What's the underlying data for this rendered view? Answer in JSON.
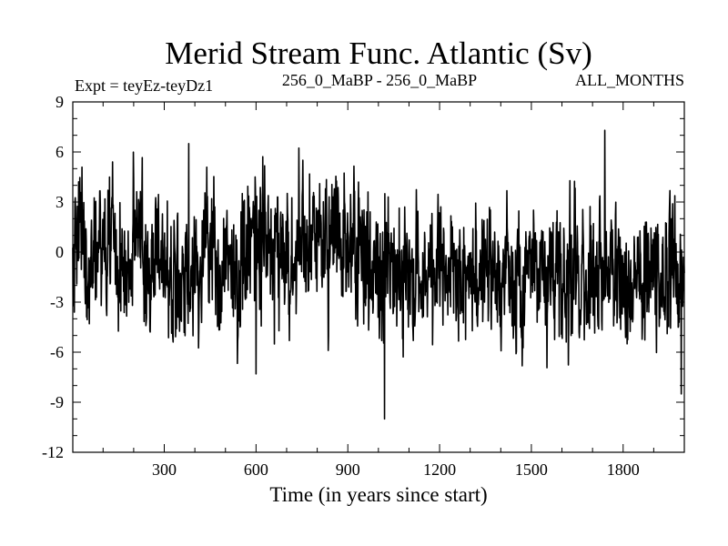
{
  "chart_data": {
    "type": "line",
    "title": "Merid Stream Func. Atlantic (Sv)",
    "subtitle_left": "Expt = teyEz-teyDz1",
    "subtitle_center": "256_0_MaBP - 256_0_MaBP",
    "subtitle_right": "ALL_MONTHS",
    "xlabel": "Time (in years since start)",
    "ylabel": "",
    "xlim": [
      1,
      2000
    ],
    "ylim": [
      -12,
      9
    ],
    "x_ticks": [
      300,
      600,
      900,
      1200,
      1500,
      1800
    ],
    "x_tick_labels": [
      "300",
      "600",
      "900",
      "1200",
      "1500",
      "1800"
    ],
    "y_ticks": [
      9,
      6,
      3,
      0,
      -3,
      -6,
      -9,
      -12
    ],
    "y_tick_labels": [
      "9",
      "6",
      "3",
      "0",
      "-3",
      "-6",
      "-9",
      "-12"
    ],
    "grid": false,
    "series": [
      {
        "name": "Merid Stream Func. Atlantic",
        "sampling_step_years": 10,
        "x_start": 1,
        "mean_values": [
          -1.5,
          1.0,
          1.5,
          1.0,
          -0.5,
          -1.0,
          -0.5,
          0.0,
          0.5,
          1.0,
          0.5,
          0.0,
          0.5,
          1.0,
          0.0,
          -1.0,
          -1.5,
          -1.0,
          -1.0,
          -0.5,
          0.0,
          0.5,
          -0.5,
          0.0,
          -0.5,
          -0.5,
          0.0,
          -0.5,
          -0.5,
          0.0,
          -1.0,
          -1.5,
          -1.5,
          -1.0,
          -1.5,
          -2.0,
          -2.0,
          -2.0,
          -1.5,
          -1.0,
          -0.5,
          -0.5,
          0.0,
          0.5,
          0.5,
          0.0,
          0.5,
          0.0,
          -0.5,
          -0.5,
          0.0,
          -0.5,
          0.0,
          -1.0,
          -1.0,
          -0.5,
          0.0,
          0.0,
          0.5,
          0.5,
          0.5,
          0.0,
          0.5,
          0.5,
          0.5,
          1.0,
          0.5,
          0.0,
          0.5,
          0.0,
          -0.5,
          -0.5,
          0.0,
          -0.5,
          -0.5,
          0.0,
          -0.5,
          0.0,
          1.0,
          1.0,
          0.5,
          1.0,
          1.0,
          0.5,
          0.0,
          0.5,
          1.0,
          1.0,
          0.5,
          0.5,
          0.0,
          0.5,
          1.0,
          0.5,
          0.5,
          0.0,
          -0.5,
          -1.0,
          -1.0,
          -1.5
        ],
        "notable_values": [
          {
            "x": 380,
            "y": 6.5
          },
          {
            "x": 600,
            "y": -7.3
          },
          {
            "x": 1020,
            "y": -10.0
          },
          {
            "x": 1740,
            "y": 7.3
          },
          {
            "x": 1990,
            "y": -8.5
          }
        ],
        "approx_range": [
          -10.0,
          7.3
        ]
      }
    ]
  }
}
